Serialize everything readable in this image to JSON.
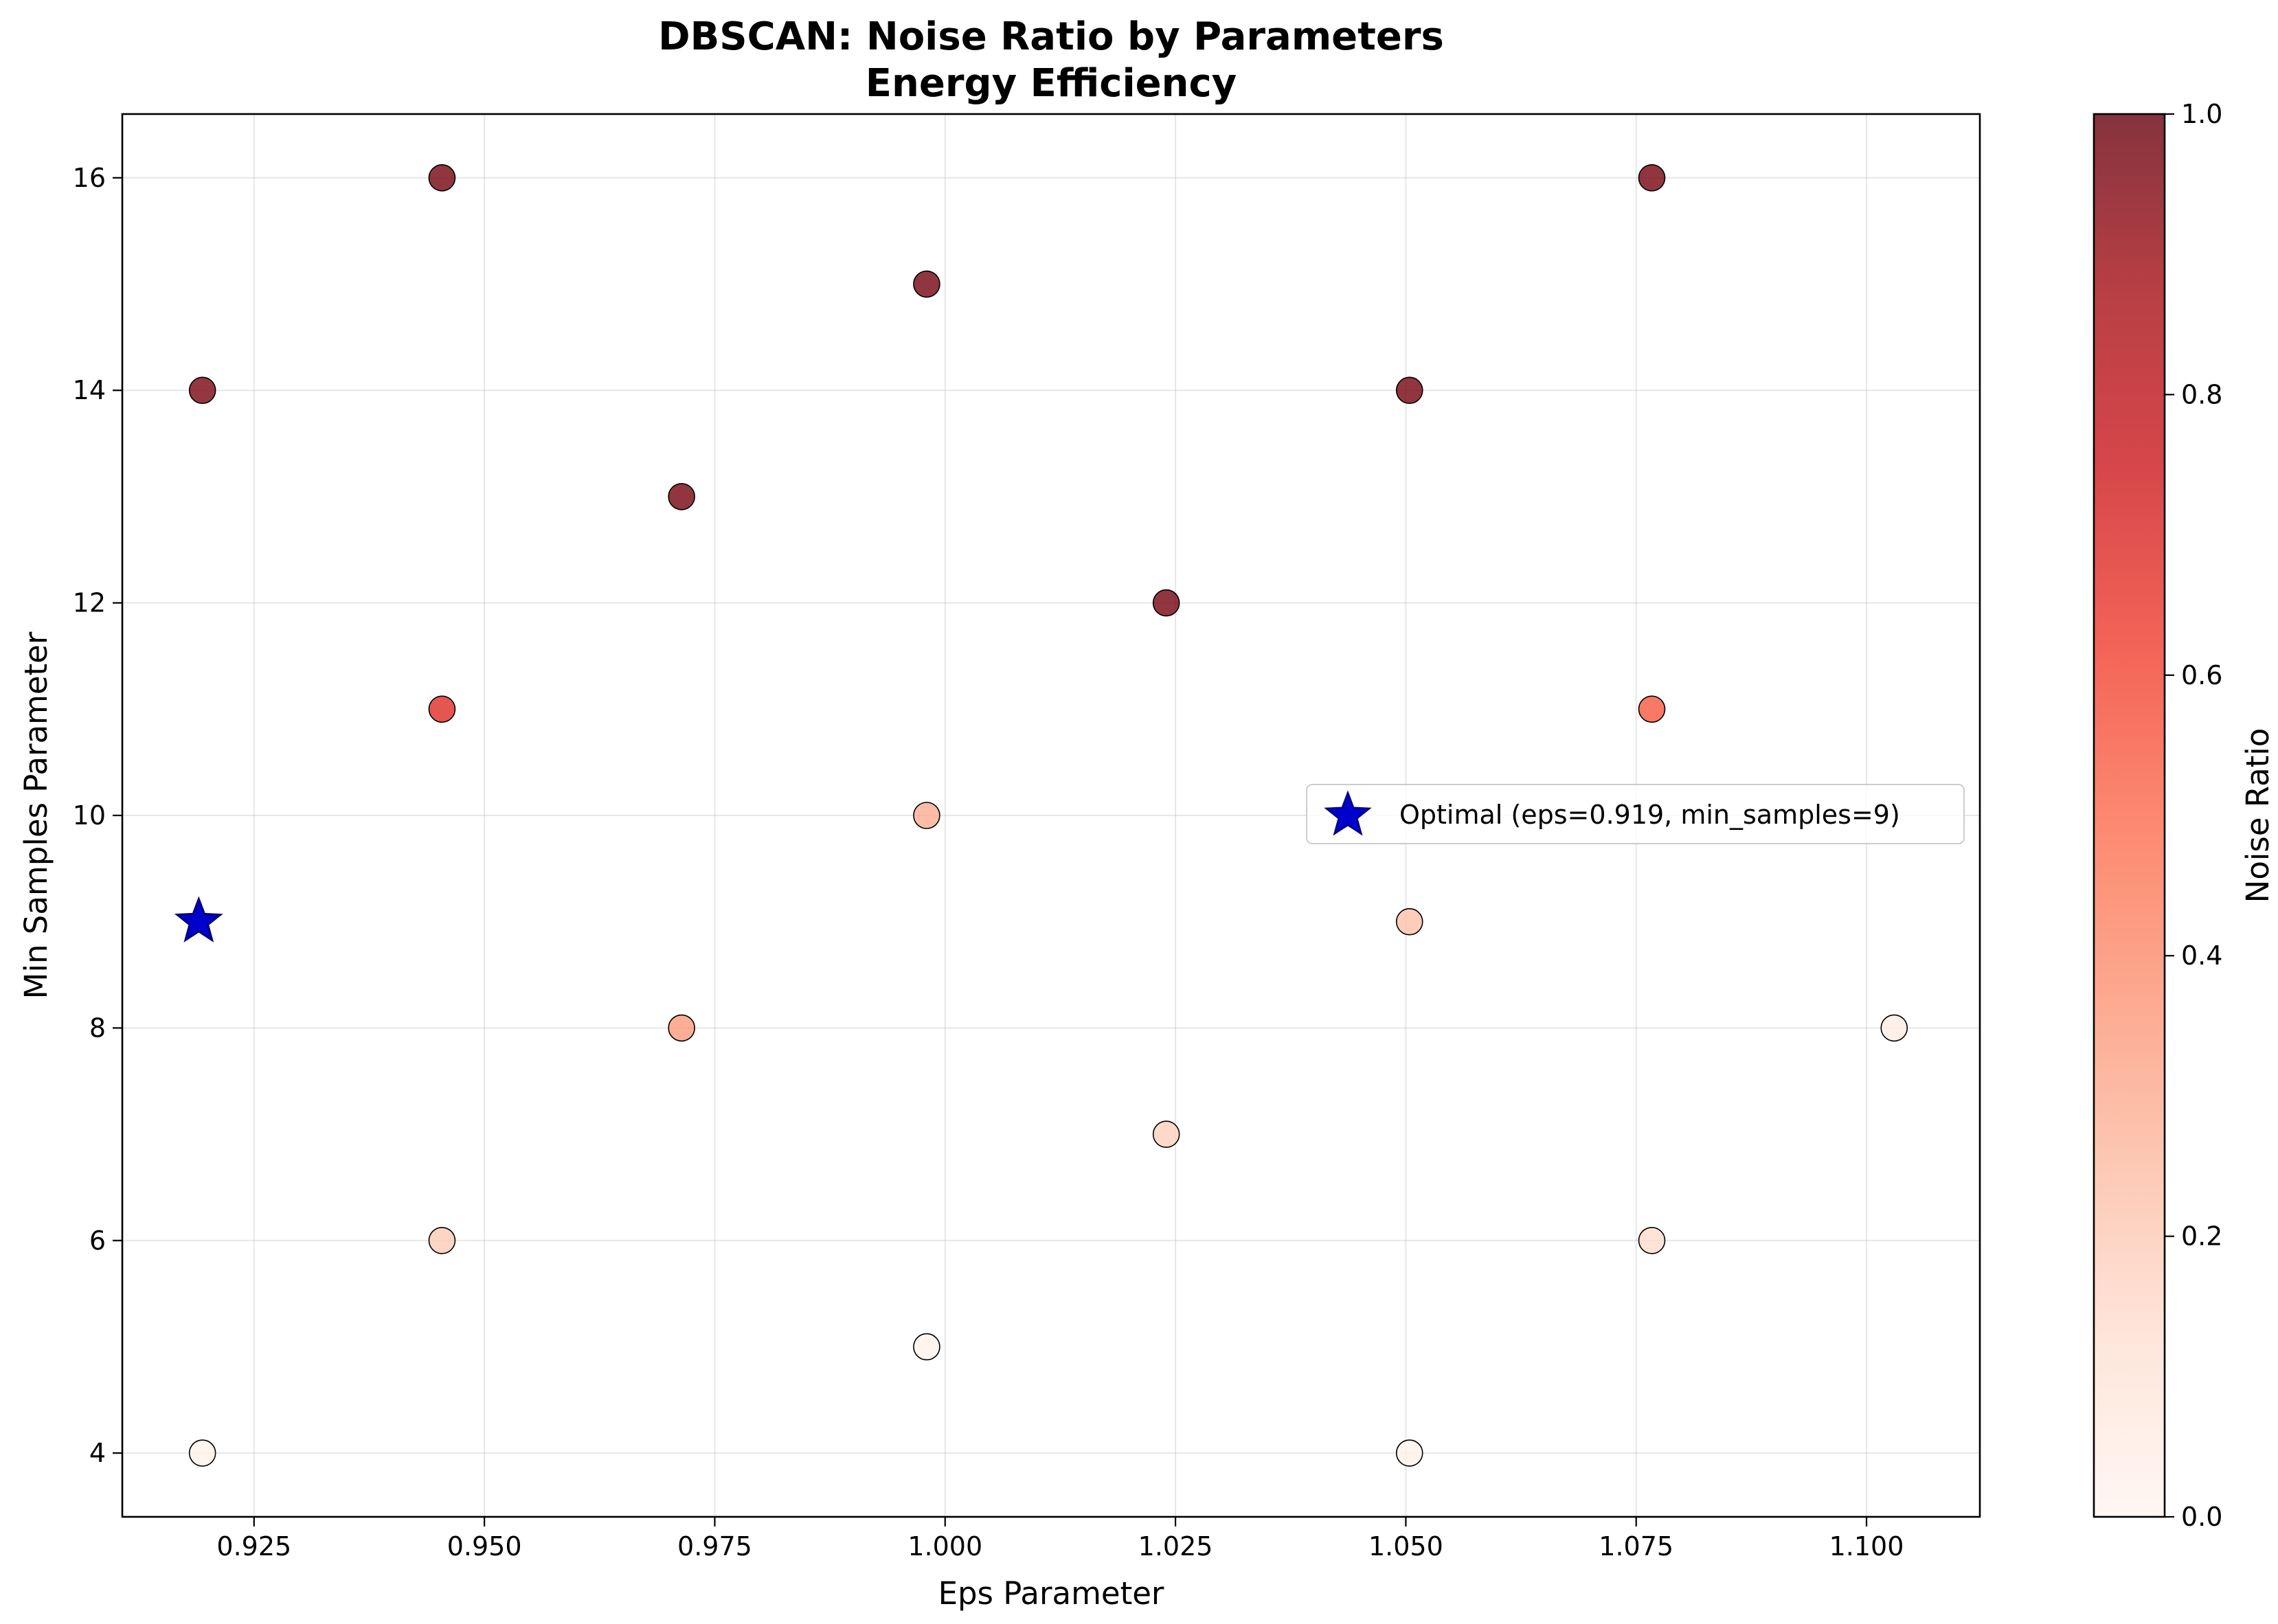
{
  "chart_data": {
    "type": "scatter",
    "title": "DBSCAN: Noise Ratio by Parameters",
    "subtitle": "Energy Efficiency",
    "xlabel": "Eps Parameter",
    "ylabel": "Min Samples Parameter",
    "xlim": [
      0.9107,
      1.1123
    ],
    "ylim": [
      3.4,
      16.6
    ],
    "xticks": [
      "0.925",
      "0.950",
      "0.975",
      "1.000",
      "1.025",
      "1.050",
      "1.075",
      "1.100"
    ],
    "xtick_values": [
      0.925,
      0.95,
      0.975,
      1.0,
      1.025,
      1.05,
      1.075,
      1.1
    ],
    "yticks": [
      "4",
      "6",
      "8",
      "10",
      "12",
      "14",
      "16"
    ],
    "ytick_values": [
      4,
      6,
      8,
      10,
      12,
      14,
      16
    ],
    "grid": true,
    "colormap": "Reds",
    "colorbar": {
      "label": "Noise Ratio",
      "range": [
        0.0,
        1.0
      ],
      "ticks": [
        "0.0",
        "0.2",
        "0.4",
        "0.6",
        "0.8",
        "1.0"
      ],
      "tick_values": [
        0.0,
        0.2,
        0.4,
        0.6,
        0.8,
        1.0
      ]
    },
    "points": [
      {
        "x": 0.9194,
        "y": 4,
        "noise": 0.02
      },
      {
        "x": 0.9194,
        "y": 14,
        "noise": 0.96
      },
      {
        "x": 0.9454,
        "y": 6,
        "noise": 0.2
      },
      {
        "x": 0.9454,
        "y": 11,
        "noise": 0.68
      },
      {
        "x": 0.9454,
        "y": 16,
        "noise": 0.97
      },
      {
        "x": 0.9714,
        "y": 8,
        "noise": 0.35
      },
      {
        "x": 0.9714,
        "y": 13,
        "noise": 0.97
      },
      {
        "x": 0.998,
        "y": 5,
        "noise": 0.02
      },
      {
        "x": 0.998,
        "y": 10,
        "noise": 0.3
      },
      {
        "x": 0.998,
        "y": 15,
        "noise": 0.97
      },
      {
        "x": 1.024,
        "y": 7,
        "noise": 0.18
      },
      {
        "x": 1.024,
        "y": 12,
        "noise": 0.97
      },
      {
        "x": 1.0504,
        "y": 4,
        "noise": 0.02
      },
      {
        "x": 1.0504,
        "y": 9,
        "noise": 0.23
      },
      {
        "x": 1.0504,
        "y": 14,
        "noise": 0.97
      },
      {
        "x": 1.0767,
        "y": 6,
        "noise": 0.14
      },
      {
        "x": 1.0767,
        "y": 11,
        "noise": 0.55
      },
      {
        "x": 1.0767,
        "y": 16,
        "noise": 0.97
      },
      {
        "x": 1.103,
        "y": 8,
        "noise": 0.05
      }
    ],
    "optimal": {
      "x": 0.919,
      "y": 9,
      "color": "#0000cc"
    },
    "legend": {
      "placement": "center-right",
      "label": "Optimal (eps=0.919, min_samples=9)"
    }
  }
}
